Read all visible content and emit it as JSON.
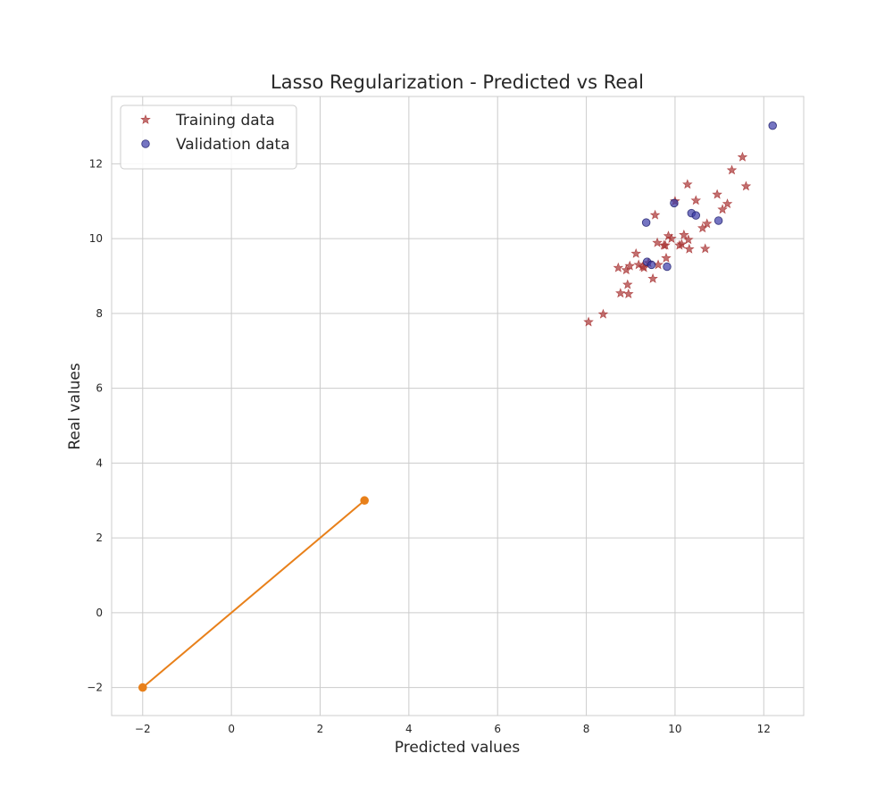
{
  "chart_data": {
    "type": "scatter",
    "title": "Lasso Regularization - Predicted vs Real",
    "xlabel": "Predicted values",
    "ylabel": "Real values",
    "xlim": [
      -2.7,
      12.9
    ],
    "ylim": [
      -2.75,
      13.8
    ],
    "xticks": [
      -2,
      0,
      2,
      4,
      6,
      8,
      10,
      12
    ],
    "yticks": [
      -2,
      0,
      2,
      4,
      6,
      8,
      10,
      12
    ],
    "xtick_labels": [
      "−2",
      "0",
      "2",
      "4",
      "6",
      "8",
      "10",
      "12"
    ],
    "ytick_labels": [
      "−2",
      "0",
      "2",
      "4",
      "6",
      "8",
      "10",
      "12"
    ],
    "grid": true,
    "legend_position": "upper-left",
    "series": [
      {
        "name": "Training data",
        "marker": "star",
        "color": "#a83232",
        "points": [
          [
            8.05,
            7.77
          ],
          [
            8.38,
            7.98
          ],
          [
            8.72,
            9.22
          ],
          [
            8.77,
            8.54
          ],
          [
            8.9,
            9.16
          ],
          [
            8.93,
            8.77
          ],
          [
            8.95,
            8.52
          ],
          [
            8.98,
            9.27
          ],
          [
            9.12,
            9.6
          ],
          [
            9.18,
            9.3
          ],
          [
            9.27,
            9.25
          ],
          [
            9.3,
            9.22
          ],
          [
            9.4,
            9.35
          ],
          [
            9.5,
            8.93
          ],
          [
            9.55,
            10.63
          ],
          [
            9.6,
            9.89
          ],
          [
            9.62,
            9.3
          ],
          [
            9.75,
            9.82
          ],
          [
            9.78,
            9.82
          ],
          [
            9.8,
            9.48
          ],
          [
            9.85,
            10.07
          ],
          [
            9.92,
            10.0
          ],
          [
            10.0,
            11.0
          ],
          [
            10.1,
            9.82
          ],
          [
            10.15,
            9.85
          ],
          [
            10.2,
            10.1
          ],
          [
            10.28,
            11.45
          ],
          [
            10.3,
            9.97
          ],
          [
            10.32,
            9.72
          ],
          [
            10.47,
            11.02
          ],
          [
            10.62,
            10.28
          ],
          [
            10.68,
            9.73
          ],
          [
            10.72,
            10.4
          ],
          [
            10.95,
            11.18
          ],
          [
            11.07,
            10.78
          ],
          [
            11.18,
            10.93
          ],
          [
            11.28,
            11.83
          ],
          [
            11.52,
            12.18
          ],
          [
            11.6,
            11.4
          ]
        ]
      },
      {
        "name": "Validation data",
        "marker": "circle",
        "color": "#3b3ba8",
        "points": [
          [
            9.35,
            10.43
          ],
          [
            9.37,
            9.38
          ],
          [
            9.47,
            9.3
          ],
          [
            9.82,
            9.25
          ],
          [
            9.98,
            10.95
          ],
          [
            10.37,
            10.68
          ],
          [
            10.47,
            10.62
          ],
          [
            10.98,
            10.48
          ],
          [
            12.2,
            13.02
          ]
        ]
      },
      {
        "name": "",
        "marker": "line",
        "color": "#e8801a",
        "points": [
          [
            -2,
            -2
          ],
          [
            3,
            3
          ]
        ]
      }
    ]
  }
}
